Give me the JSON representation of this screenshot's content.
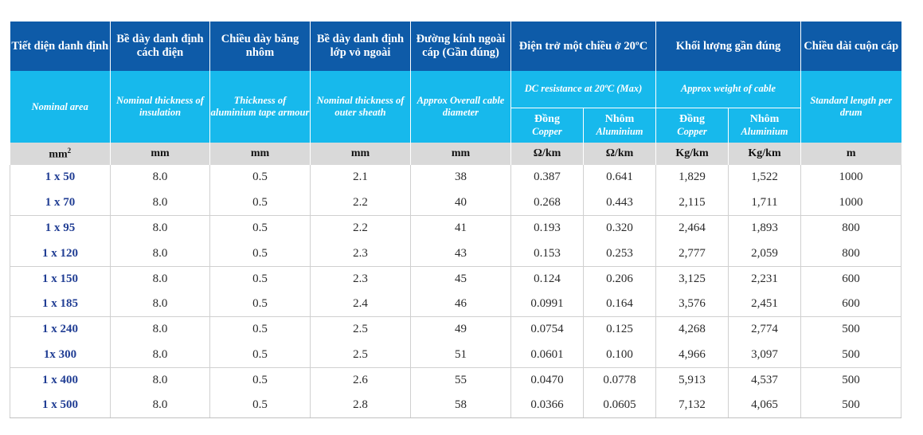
{
  "header_vn": {
    "area": "Tiết diện danh định",
    "insulation": "Bề dày danh định cách điện",
    "tape": "Chiều dày băng nhôm",
    "sheath": "Bề dày danh định lớp vỏ ngoài",
    "diameter": "Đường kính ngoài cáp (Gần đúng)",
    "resistance": "Điện trở một chiều ở 20ºC",
    "weight": "Khối lượng gần đúng",
    "length": "Chiều dài cuộn cáp"
  },
  "header_en": {
    "area": "Nominal area",
    "insulation": "Nominal thickness of insulation",
    "tape": "Thickness of aluminium tape armour",
    "sheath": "Nominal thickness of outer sheath",
    "diameter": "Approx Overall cable diameter",
    "resistance": "DC resistance at 20ºC (Max)",
    "weight": "Approx weight of cable",
    "length": "Standard length per drum"
  },
  "sub": {
    "copper_vn": "Đồng",
    "copper_en": "Copper",
    "alu_vn": "Nhôm",
    "alu_en": "Aluminium"
  },
  "units": {
    "area": "mm",
    "area_sup": "2",
    "insulation": "mm",
    "tape": "mm",
    "sheath": "mm",
    "diameter": "mm",
    "res_cu": "Ω/km",
    "res_al": "Ω/km",
    "wt_cu": "Kg/km",
    "wt_al": "Kg/km",
    "length": "m"
  },
  "rows": [
    {
      "area": "1 x 50",
      "insulation": "8.0",
      "tape": "0.5",
      "sheath": "2.1",
      "diameter": "38",
      "res_cu": "0.387",
      "res_al": "0.641",
      "wt_cu": "1,829",
      "wt_al": "1,522",
      "length": "1000"
    },
    {
      "area": "1 x 70",
      "insulation": "8.0",
      "tape": "0.5",
      "sheath": "2.2",
      "diameter": "40",
      "res_cu": "0.268",
      "res_al": "0.443",
      "wt_cu": "2,115",
      "wt_al": "1,711",
      "length": "1000"
    },
    {
      "area": "1 x 95",
      "insulation": "8.0",
      "tape": "0.5",
      "sheath": "2.2",
      "diameter": "41",
      "res_cu": "0.193",
      "res_al": "0.320",
      "wt_cu": "2,464",
      "wt_al": "1,893",
      "length": "800"
    },
    {
      "area": "1 x 120",
      "insulation": "8.0",
      "tape": "0.5",
      "sheath": "2.3",
      "diameter": "43",
      "res_cu": "0.153",
      "res_al": "0.253",
      "wt_cu": "2,777",
      "wt_al": "2,059",
      "length": "800"
    },
    {
      "area": "1 x 150",
      "insulation": "8.0",
      "tape": "0.5",
      "sheath": "2.3",
      "diameter": "45",
      "res_cu": "0.124",
      "res_al": "0.206",
      "wt_cu": "3,125",
      "wt_al": "2,231",
      "length": "600"
    },
    {
      "area": "1 x 185",
      "insulation": "8.0",
      "tape": "0.5",
      "sheath": "2.4",
      "diameter": "46",
      "res_cu": "0.0991",
      "res_al": "0.164",
      "wt_cu": "3,576",
      "wt_al": "2,451",
      "length": "600"
    },
    {
      "area": "1 x 240",
      "insulation": "8.0",
      "tape": "0.5",
      "sheath": "2.5",
      "diameter": "49",
      "res_cu": "0.0754",
      "res_al": "0.125",
      "wt_cu": "4,268",
      "wt_al": "2,774",
      "length": "500"
    },
    {
      "area": "1x 300",
      "insulation": "8.0",
      "tape": "0.5",
      "sheath": "2.5",
      "diameter": "51",
      "res_cu": "0.0601",
      "res_al": "0.100",
      "wt_cu": "4,966",
      "wt_al": "3,097",
      "length": "500"
    },
    {
      "area": "1 x 400",
      "insulation": "8.0",
      "tape": "0.5",
      "sheath": "2.6",
      "diameter": "55",
      "res_cu": "0.0470",
      "res_al": "0.0778",
      "wt_cu": "5,913",
      "wt_al": "4,537",
      "length": "500"
    },
    {
      "area": "1 x 500",
      "insulation": "8.0",
      "tape": "0.5",
      "sheath": "2.8",
      "diameter": "58",
      "res_cu": "0.0366",
      "res_al": "0.0605",
      "wt_cu": "7,132",
      "wt_al": "4,065",
      "length": "500"
    }
  ],
  "colors": {
    "header_dark": "#0e5ba8",
    "header_light": "#17b9ec",
    "units_bg": "#d9d9d9",
    "first_col_text": "#213e94"
  }
}
